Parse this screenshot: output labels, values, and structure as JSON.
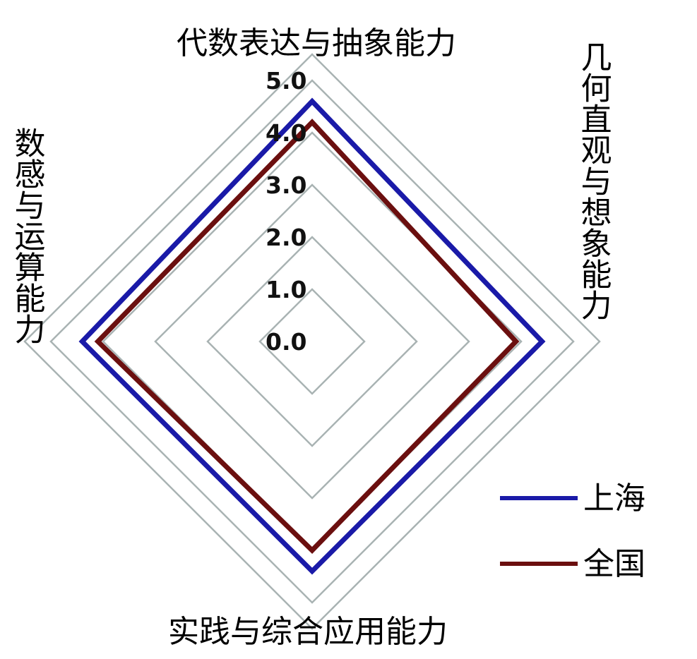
{
  "chart_data": {
    "type": "radar",
    "axes": [
      "代数表达与抽象能力",
      "几何直观与想象能力",
      "实践与综合应用能力",
      "数感与运算能力"
    ],
    "ticks": [
      "0.0",
      "1.0",
      "2.0",
      "3.0",
      "4.0",
      "5.0"
    ],
    "range": [
      0,
      5
    ],
    "grid": true,
    "legend_position": "bottom-right",
    "series": [
      {
        "name": "上海",
        "values": [
          4.6,
          4.4,
          4.4,
          4.4
        ],
        "color": "#1a1aa8"
      },
      {
        "name": "全国",
        "values": [
          4.2,
          3.9,
          4.0,
          4.1
        ],
        "color": "#6b0f0f"
      }
    ]
  }
}
